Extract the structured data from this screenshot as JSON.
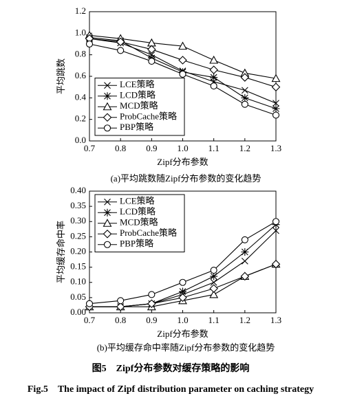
{
  "chart_data": [
    {
      "type": "line",
      "caption": "(a)平均跳数随Zipf分布参数的变化趋势",
      "x_label": "Zipf分布参数",
      "y_label": "平均跳数",
      "x": [
        0.7,
        0.8,
        0.9,
        1.0,
        1.1,
        1.2,
        1.3
      ],
      "xlim": [
        0.7,
        1.3
      ],
      "xticks": [
        0.7,
        0.8,
        0.9,
        {
          "value": 1.0,
          "label": "1.0"
        },
        1.1,
        1.2,
        1.3
      ],
      "ylim": [
        0,
        1.2
      ],
      "yticks": [
        {
          "value": 0,
          "label": "0.0"
        },
        0.2,
        0.4,
        0.6,
        0.8,
        {
          "value": 1.0,
          "label": "1.0"
        },
        1.2
      ],
      "legend": "lower left",
      "series": [
        {
          "name": "LCE策略",
          "color": "#000000",
          "marker": "x",
          "values": [
            0.95,
            0.91,
            0.8,
            0.65,
            0.55,
            0.47,
            0.35
          ]
        },
        {
          "name": "LCD策略",
          "color": "#000000",
          "marker": "asterisk",
          "values": [
            0.96,
            0.93,
            0.77,
            0.64,
            0.59,
            0.4,
            0.3
          ]
        },
        {
          "name": "MCD策略",
          "color": "#000000",
          "marker": "triangle",
          "values": [
            0.98,
            0.95,
            0.91,
            0.88,
            0.75,
            0.63,
            0.58
          ]
        },
        {
          "name": "ProbCache策略",
          "color": "#000000",
          "marker": "diamond",
          "values": [
            0.95,
            0.92,
            0.85,
            0.75,
            0.66,
            0.59,
            0.5
          ]
        },
        {
          "name": "PBP策略",
          "color": "#000000",
          "marker": "circle",
          "values": [
            0.9,
            0.84,
            0.74,
            0.62,
            0.51,
            0.34,
            0.24
          ]
        }
      ]
    },
    {
      "type": "line",
      "caption": "(b)平均缓存命中率随Zipf分布参数的变化趋势",
      "x_label": "Zipf分布参数",
      "y_label": "平均缓存命中率",
      "x": [
        0.7,
        0.8,
        0.9,
        1.0,
        1.1,
        1.2,
        1.3
      ],
      "xlim": [
        0.7,
        1.3
      ],
      "xticks": [
        0.7,
        0.8,
        0.9,
        {
          "value": 1.0,
          "label": "1.0"
        },
        1.1,
        1.2,
        1.3
      ],
      "ylim": [
        0,
        0.4
      ],
      "yticks": [
        {
          "value": 0,
          "label": "0.00"
        },
        0.05,
        {
          "value": 0.1,
          "label": "0.10"
        },
        0.15,
        {
          "value": 0.2,
          "label": "0.20"
        },
        0.25,
        {
          "value": 0.3,
          "label": "0.30"
        },
        0.35,
        {
          "value": 0.4,
          "label": "0.40"
        }
      ],
      "legend": "upper left",
      "series": [
        {
          "name": "LCE策略",
          "color": "#000000",
          "marker": "x",
          "values": [
            0.02,
            0.02,
            0.03,
            0.06,
            0.1,
            0.17,
            0.27
          ]
        },
        {
          "name": "LCD策略",
          "color": "#000000",
          "marker": "asterisk",
          "values": [
            0.02,
            0.02,
            0.03,
            0.07,
            0.12,
            0.2,
            0.29
          ]
        },
        {
          "name": "MCD策略",
          "color": "#000000",
          "marker": "triangle",
          "values": [
            0.02,
            0.02,
            0.02,
            0.04,
            0.06,
            0.12,
            0.16
          ]
        },
        {
          "name": "ProbCache策略",
          "color": "#000000",
          "marker": "diamond",
          "values": [
            0.02,
            0.02,
            0.03,
            0.05,
            0.08,
            0.12,
            0.16
          ]
        },
        {
          "name": "PBP策略",
          "color": "#000000",
          "marker": "circle",
          "values": [
            0.03,
            0.04,
            0.06,
            0.1,
            0.14,
            0.24,
            0.3
          ]
        }
      ]
    }
  ],
  "figure_caption": {
    "zh": "图5　Zipf分布参数对缓存策略的影响",
    "en": "Fig.5　The impact of Zipf distribution parameter on caching strategy"
  }
}
